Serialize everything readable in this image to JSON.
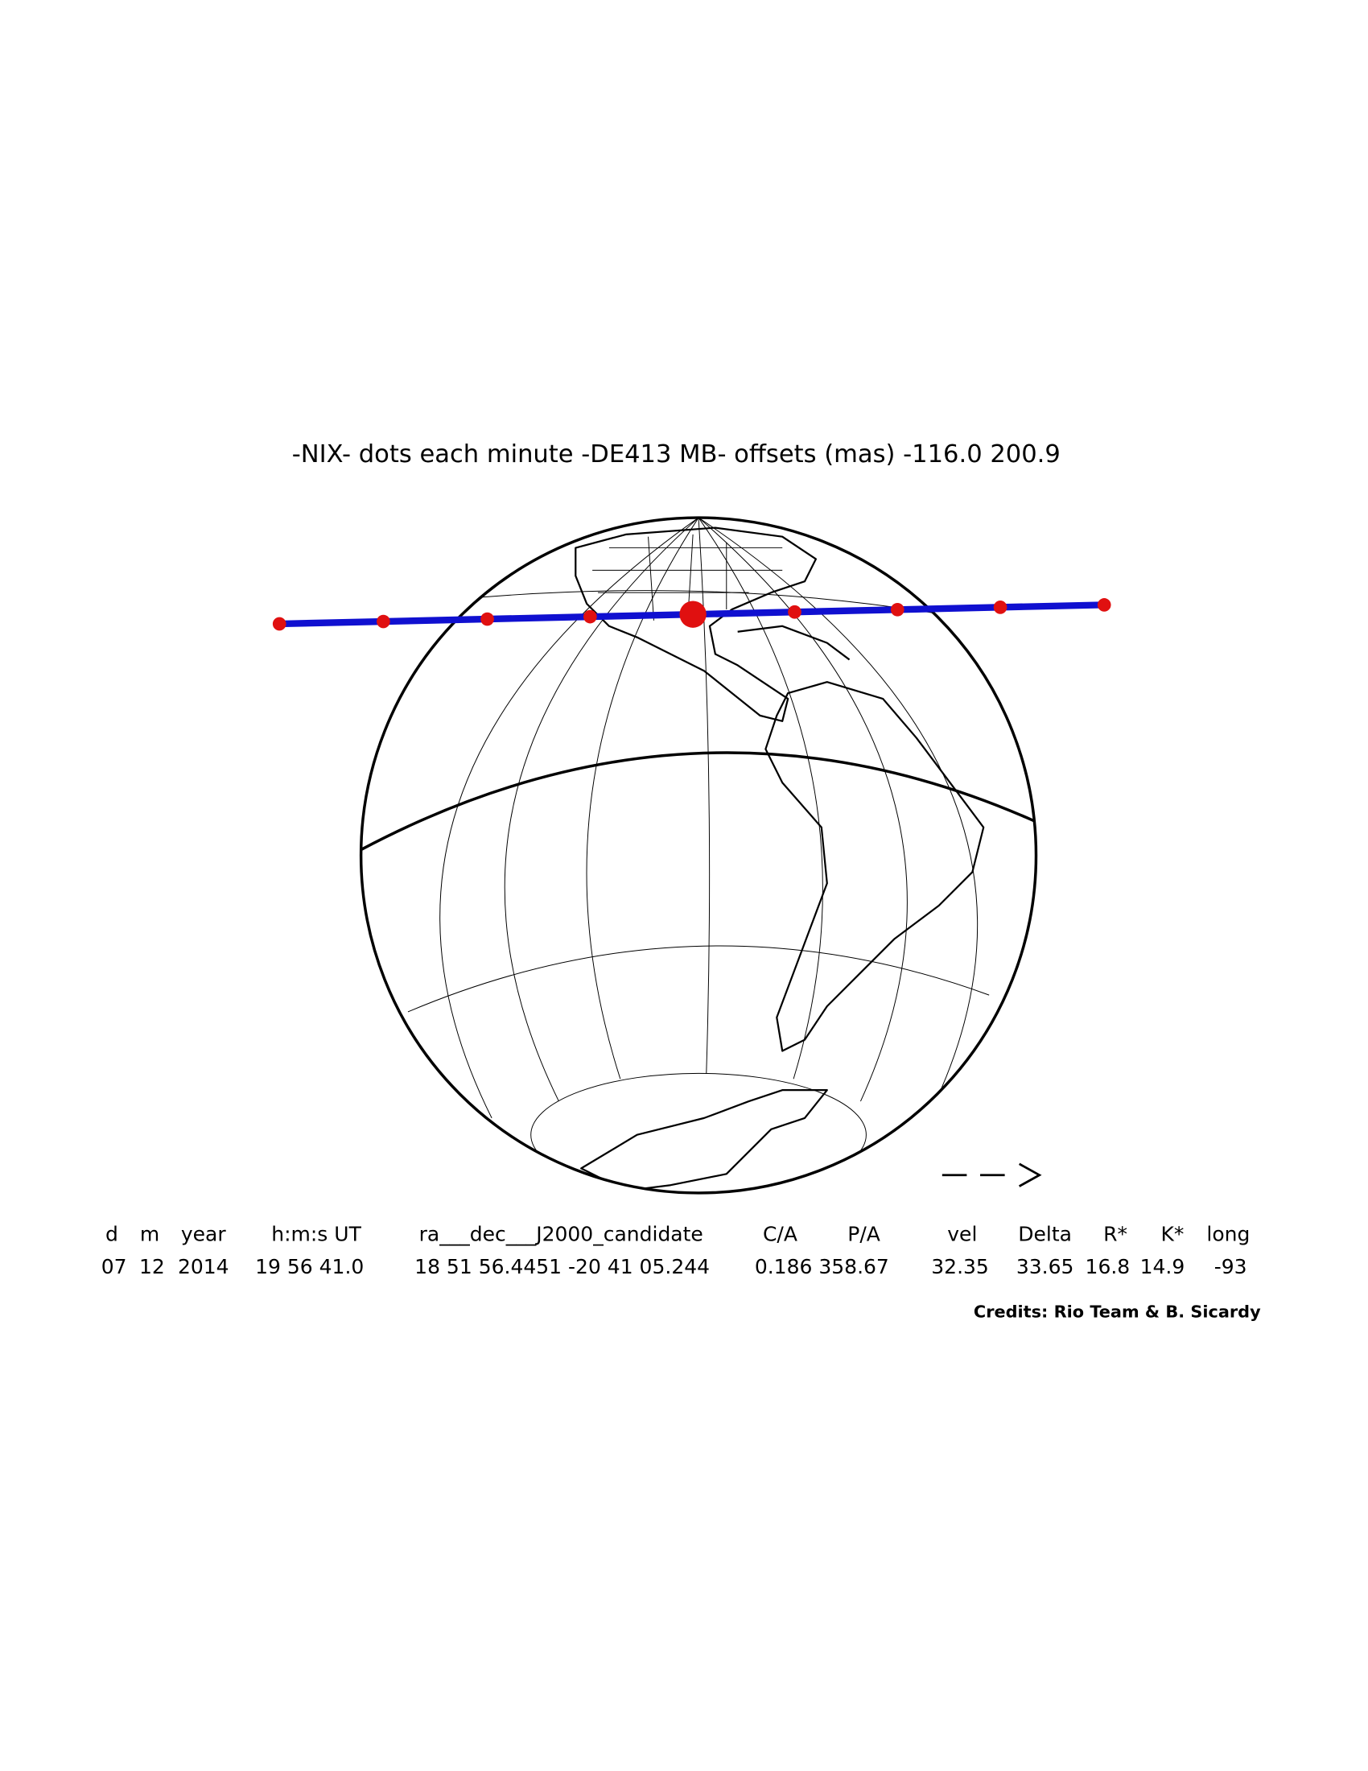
{
  "header": {
    "title": "-NIX- dots each minute -DE413 MB- offsets (mas) -116.0  200.9"
  },
  "table": {
    "header": [
      "d",
      "m",
      "year",
      "h:m:s UT",
      "ra___dec___J2000_candidate",
      "C/A",
      "P/A",
      "vel",
      "Delta",
      "R*",
      "K*",
      "long"
    ],
    "rows": [
      [
        "07",
        "12",
        "2014",
        "19 56 41.0",
        "18 51 56.4451 -20 41 05.244",
        "0.186",
        "358.67",
        "32.35",
        "33.65",
        "16.8",
        "14.9",
        "-93"
      ]
    ]
  },
  "footer": {
    "credits": "Credits: Rio Team & B. Sicardy"
  }
}
